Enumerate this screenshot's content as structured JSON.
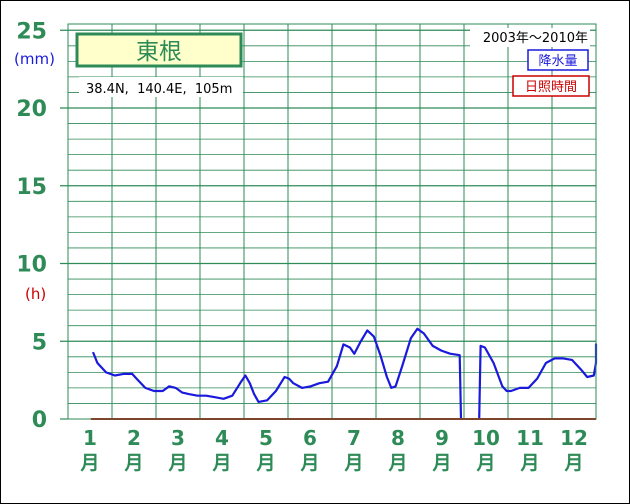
{
  "chart_data": {
    "type": "line",
    "title": "東根",
    "location": "38.4N,  140.4E,  105m",
    "period": "2003年～2010年",
    "legend": [
      {
        "label": "降水量",
        "color": "#1a1adc"
      },
      {
        "label": "日照時間",
        "color": "#cc0000"
      }
    ],
    "units": {
      "precip": "(mm)",
      "sun": "(h)"
    },
    "yticks": [
      "25",
      "20",
      "15",
      "10",
      "5",
      "0"
    ],
    "months": [
      {
        "num": "1",
        "kanji": "月"
      },
      {
        "num": "2",
        "kanji": "月"
      },
      {
        "num": "3",
        "kanji": "月"
      },
      {
        "num": "4",
        "kanji": "月"
      },
      {
        "num": "5",
        "kanji": "月"
      },
      {
        "num": "6",
        "kanji": "月"
      },
      {
        "num": "7",
        "kanji": "月"
      },
      {
        "num": "8",
        "kanji": "月"
      },
      {
        "num": "9",
        "kanji": "月"
      },
      {
        "num": "10",
        "kanji": "月"
      },
      {
        "num": "11",
        "kanji": "月"
      },
      {
        "num": "12",
        "kanji": "月"
      }
    ],
    "ylim": [
      0,
      25
    ],
    "xlim": [
      1,
      12.6
    ],
    "grid": true,
    "series": [
      {
        "name": "降水量",
        "color": "#1a1adc",
        "segments": [
          [
            [
              1.0,
              4.3
            ],
            [
              1.1,
              3.6
            ],
            [
              1.3,
              3.0
            ],
            [
              1.5,
              2.8
            ],
            [
              1.7,
              2.9
            ],
            [
              1.9,
              2.9
            ],
            [
              2.0,
              2.6
            ],
            [
              2.2,
              2.0
            ],
            [
              2.4,
              1.8
            ],
            [
              2.6,
              1.8
            ],
            [
              2.75,
              2.1
            ],
            [
              2.9,
              2.0
            ],
            [
              3.05,
              1.7
            ],
            [
              3.2,
              1.6
            ],
            [
              3.4,
              1.5
            ],
            [
              3.6,
              1.5
            ],
            [
              3.8,
              1.4
            ],
            [
              4.0,
              1.3
            ],
            [
              4.2,
              1.5
            ],
            [
              4.4,
              2.4
            ],
            [
              4.5,
              2.8
            ],
            [
              4.6,
              2.3
            ],
            [
              4.7,
              1.6
            ],
            [
              4.8,
              1.1
            ],
            [
              5.0,
              1.2
            ],
            [
              5.2,
              1.8
            ],
            [
              5.4,
              2.7
            ],
            [
              5.5,
              2.6
            ],
            [
              5.6,
              2.3
            ],
            [
              5.8,
              2.0
            ],
            [
              6.0,
              2.1
            ],
            [
              6.2,
              2.3
            ],
            [
              6.4,
              2.4
            ],
            [
              6.6,
              3.4
            ],
            [
              6.75,
              4.8
            ],
            [
              6.9,
              4.6
            ],
            [
              7.0,
              4.2
            ],
            [
              7.15,
              5.0
            ],
            [
              7.3,
              5.7
            ],
            [
              7.45,
              5.3
            ],
            [
              7.6,
              4.1
            ],
            [
              7.75,
              2.7
            ],
            [
              7.85,
              2.0
            ],
            [
              7.95,
              2.1
            ],
            [
              8.1,
              3.4
            ],
            [
              8.3,
              5.2
            ],
            [
              8.45,
              5.8
            ],
            [
              8.6,
              5.5
            ],
            [
              8.8,
              4.7
            ],
            [
              9.0,
              4.4
            ],
            [
              9.2,
              4.2
            ],
            [
              9.42,
              4.1
            ],
            [
              9.45,
              0.0
            ]
          ],
          [
            [
              9.87,
              0.0
            ],
            [
              9.9,
              4.7
            ],
            [
              10.0,
              4.6
            ],
            [
              10.2,
              3.6
            ],
            [
              10.4,
              2.1
            ],
            [
              10.5,
              1.8
            ],
            [
              10.6,
              1.8
            ],
            [
              10.8,
              2.0
            ],
            [
              11.0,
              2.0
            ],
            [
              11.2,
              2.6
            ],
            [
              11.4,
              3.6
            ],
            [
              11.6,
              3.9
            ],
            [
              11.8,
              3.9
            ],
            [
              12.0,
              3.8
            ],
            [
              12.2,
              3.2
            ],
            [
              12.35,
              2.7
            ],
            [
              12.5,
              2.8
            ],
            [
              12.65,
              3.6
            ],
            [
              12.8,
              4.7
            ],
            [
              12.9,
              4.8
            ],
            [
              13.0,
              4.6
            ],
            [
              13.05,
              4.4
            ]
          ]
        ]
      },
      {
        "name": "日照時間",
        "color": "#cc0000",
        "segments": [
          [
            [
              0.95,
              0.0
            ],
            [
              13.05,
              0.0
            ]
          ]
        ]
      }
    ]
  }
}
